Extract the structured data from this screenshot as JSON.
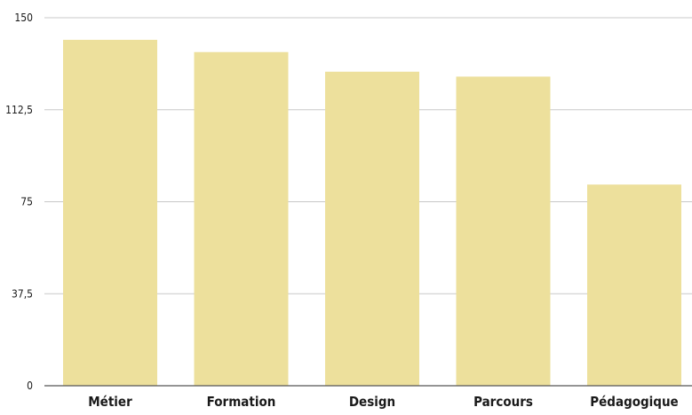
{
  "chart_data": {
    "type": "bar",
    "categories": [
      "Métier",
      "Formation",
      "Design",
      "Parcours",
      "Pédagogique"
    ],
    "values": [
      141,
      136,
      128,
      126,
      82
    ],
    "ylim": [
      0,
      150
    ],
    "yticks": [
      0,
      37.5,
      75,
      112.5,
      150
    ],
    "ytick_labels": [
      "0",
      "37,5",
      "75",
      "112,5",
      "150"
    ],
    "bar_color": "#ede09c",
    "grid": true,
    "legend": "none"
  }
}
